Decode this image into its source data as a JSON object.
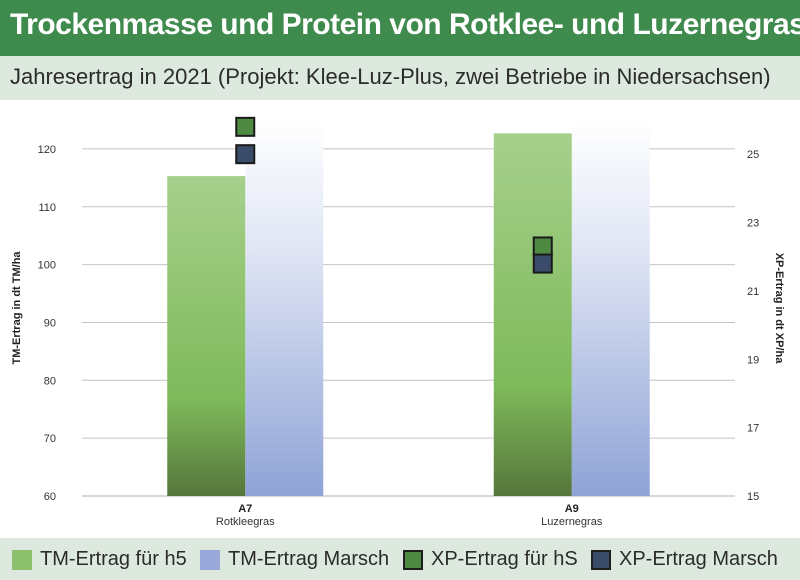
{
  "header": {
    "title": "Trockenmasse und Protein von Rotklee- und Luzernegras",
    "subtitle": "Jahresertrag in 2021 (Projekt: Klee-Luz-Plus, zwei Betriebe in Niedersachsen)"
  },
  "colors": {
    "title_bg": "#3f8a4d",
    "band_bg": "#dde9de",
    "tm_h5": "#8cc06c",
    "tm_marsch": "#98a9d9",
    "xp_h5": "#4f8a43",
    "xp_marsch": "#3b4c6b"
  },
  "legend": [
    {
      "label": "TM-Ertrag für h5",
      "kind": "fill",
      "color": "#8cc06c"
    },
    {
      "label": "TM-Ertrag Marsch",
      "kind": "fill",
      "color": "#98a9d9"
    },
    {
      "label": "XP-Ertrag für hS",
      "kind": "square",
      "color": "#4f8a43"
    },
    {
      "label": "XP-Ertrag Marsch",
      "kind": "square",
      "color": "#3b4c6b"
    }
  ],
  "chart_data": {
    "type": "bar",
    "categories": [
      {
        "code": "A7",
        "name": "Rotkleegras"
      },
      {
        "code": "A9",
        "name": "Luzernegras"
      }
    ],
    "series": [
      {
        "name": "TM-Ertrag für h5",
        "axis": "left",
        "mark": "bar",
        "values": [
          115.3,
          122.7
        ]
      },
      {
        "name": "TM-Ertrag Marsch",
        "axis": "left",
        "mark": "bar",
        "values": [
          null,
          null
        ]
      },
      {
        "name": "XP-Ertrag für hS",
        "axis": "right",
        "mark": "square",
        "values": [
          25.8,
          22.3
        ]
      },
      {
        "name": "XP-Ertrag Marsch",
        "axis": "right",
        "mark": "square",
        "values": [
          25.0,
          21.8
        ]
      }
    ],
    "ylabel": "TM-Ertrag in dt TM/ha",
    "y2label": "XP-Ertrag in dt XP/ha",
    "ylim": [
      60,
      125
    ],
    "y2lim": [
      15,
      26
    ],
    "yticks": [
      60,
      70,
      80,
      90,
      100,
      110,
      120
    ],
    "y2ticks": [
      15,
      17,
      19,
      21,
      23,
      25
    ],
    "grid": true,
    "legend_position": "bottom"
  }
}
